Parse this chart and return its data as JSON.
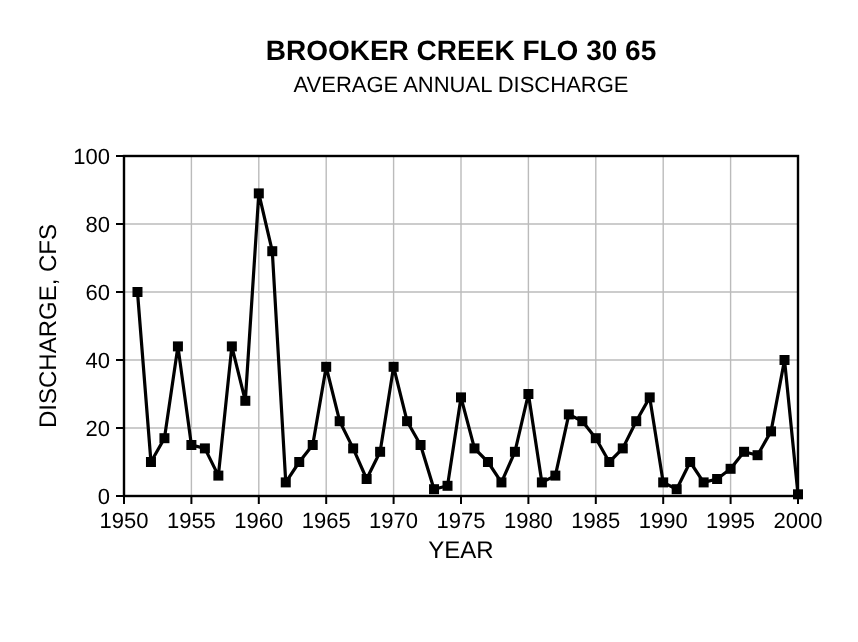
{
  "chart_data": {
    "type": "line",
    "title": "BROOKER CREEK  FLO 30 65",
    "subtitle": "AVERAGE ANNUAL DISCHARGE",
    "xlabel": "YEAR",
    "ylabel": "DISCHARGE, CFS",
    "x": [
      1951,
      1952,
      1953,
      1954,
      1955,
      1956,
      1957,
      1958,
      1959,
      1960,
      1961,
      1962,
      1963,
      1964,
      1965,
      1966,
      1967,
      1968,
      1969,
      1970,
      1971,
      1972,
      1973,
      1974,
      1975,
      1976,
      1977,
      1978,
      1979,
      1980,
      1981,
      1982,
      1983,
      1984,
      1985,
      1986,
      1987,
      1988,
      1989,
      1990,
      1991,
      1992,
      1993,
      1994,
      1995,
      1996,
      1997,
      1998,
      1999,
      2000
    ],
    "series": [
      {
        "color": "#000000",
        "values": [
          60,
          10,
          17,
          44,
          15,
          14,
          6,
          44,
          28,
          89,
          72,
          4,
          10,
          15,
          38,
          22,
          14,
          5,
          13,
          38,
          22,
          15,
          2,
          3,
          29,
          14,
          10,
          4,
          13,
          30,
          4,
          6,
          24,
          22,
          17,
          10,
          14,
          22,
          29,
          4,
          2,
          10,
          4,
          5,
          8,
          13,
          12,
          19,
          40,
          0.5
        ]
      }
    ],
    "xlim": [
      1950,
      2000
    ],
    "xticks": [
      1950,
      1955,
      1960,
      1965,
      1970,
      1975,
      1980,
      1985,
      1990,
      1995,
      2000
    ],
    "ylim": [
      0,
      100
    ],
    "yticks": [
      0,
      20,
      40,
      60,
      80,
      100
    ],
    "grid": true,
    "marker": "square",
    "line_style": "solid"
  }
}
